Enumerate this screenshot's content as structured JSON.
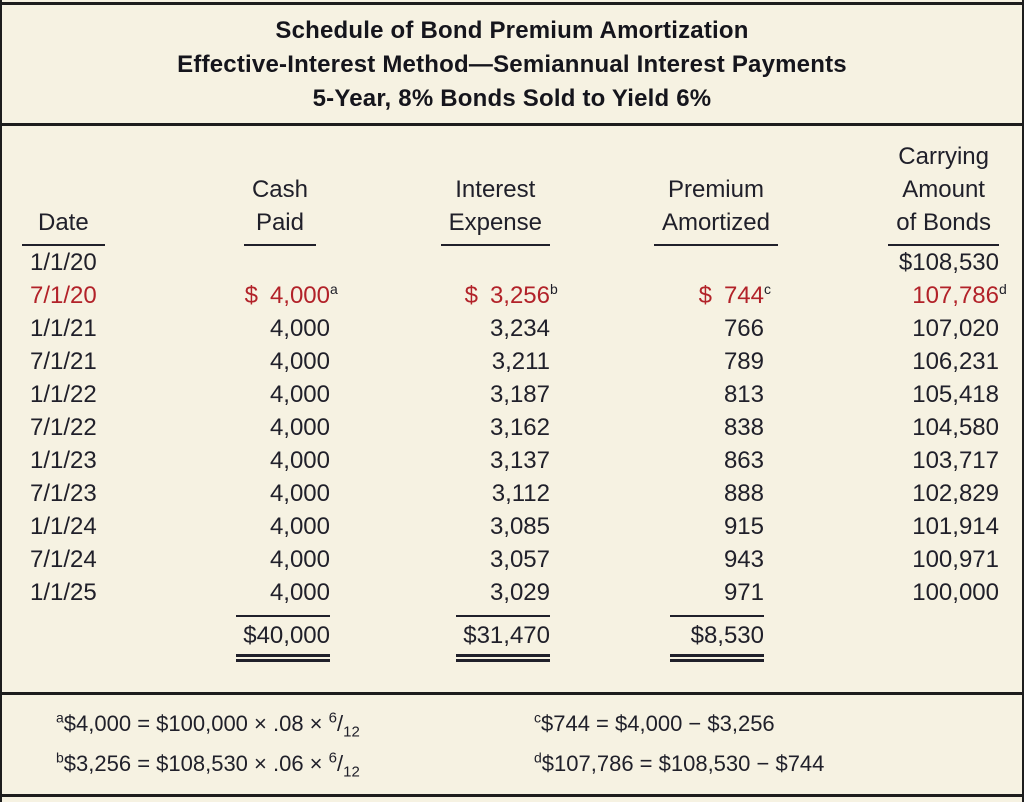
{
  "colors": {
    "background": "#f6f2e2",
    "ink": "#20202a",
    "red": "#b22229",
    "rule": "#1d1d1d"
  },
  "title": {
    "line1": "Schedule of Bond Premium Amortization",
    "line2": "Effective-Interest Method—Semiannual Interest Payments",
    "line3": "5-Year, 8% Bonds Sold to Yield 6%"
  },
  "table": {
    "headers": {
      "date": [
        "Date"
      ],
      "cash": [
        "Cash",
        "Paid"
      ],
      "interest": [
        "Interest",
        "Expense"
      ],
      "premium": [
        "Premium",
        "Amortized"
      ],
      "carrying": [
        "Carrying",
        "Amount",
        "of Bonds"
      ]
    },
    "rows": [
      {
        "date": "1/1/20",
        "carry": "$108,530"
      },
      {
        "date": "7/1/20",
        "red": true,
        "cash_cur": "$",
        "cash": "4,000",
        "cash_sup": "a",
        "int_cur": "$",
        "int": "3,256",
        "int_sup": "b",
        "prem_cur": "$",
        "prem": "744",
        "prem_sup": "c",
        "carry": "107,786",
        "carry_sup": "d"
      },
      {
        "date": "1/1/21",
        "cash": "4,000",
        "int": "3,234",
        "prem": "766",
        "carry": "107,020"
      },
      {
        "date": "7/1/21",
        "cash": "4,000",
        "int": "3,211",
        "prem": "789",
        "carry": "106,231"
      },
      {
        "date": "1/1/22",
        "cash": "4,000",
        "int": "3,187",
        "prem": "813",
        "carry": "105,418"
      },
      {
        "date": "7/1/22",
        "cash": "4,000",
        "int": "3,162",
        "prem": "838",
        "carry": "104,580"
      },
      {
        "date": "1/1/23",
        "cash": "4,000",
        "int": "3,137",
        "prem": "863",
        "carry": "103,717"
      },
      {
        "date": "7/1/23",
        "cash": "4,000",
        "int": "3,112",
        "prem": "888",
        "carry": "102,829"
      },
      {
        "date": "1/1/24",
        "cash": "4,000",
        "int": "3,085",
        "prem": "915",
        "carry": "101,914"
      },
      {
        "date": "7/1/24",
        "cash": "4,000",
        "int": "3,057",
        "prem": "943",
        "carry": "100,971"
      },
      {
        "date": "1/1/25",
        "cash": "4,000",
        "int": "3,029",
        "prem": "971",
        "carry": "100,000"
      }
    ],
    "totals": {
      "cash": "$40,000",
      "interest": "$31,470",
      "premium": "$8,530"
    }
  },
  "footnotes": {
    "left": [
      {
        "sup": "a",
        "text": "$4,000 = $100,000 × .08 × ",
        "frac_num": "6",
        "frac_slash": "/",
        "frac_den": "12"
      },
      {
        "sup": "b",
        "text": "$3,256 = $108,530 × .06 × ",
        "frac_num": "6",
        "frac_slash": "/",
        "frac_den": "12"
      }
    ],
    "right": [
      {
        "sup": "c",
        "text": "$744 = $4,000 − $3,256"
      },
      {
        "sup": "d",
        "text": "$107,786 = $108,530 − $744"
      }
    ]
  }
}
